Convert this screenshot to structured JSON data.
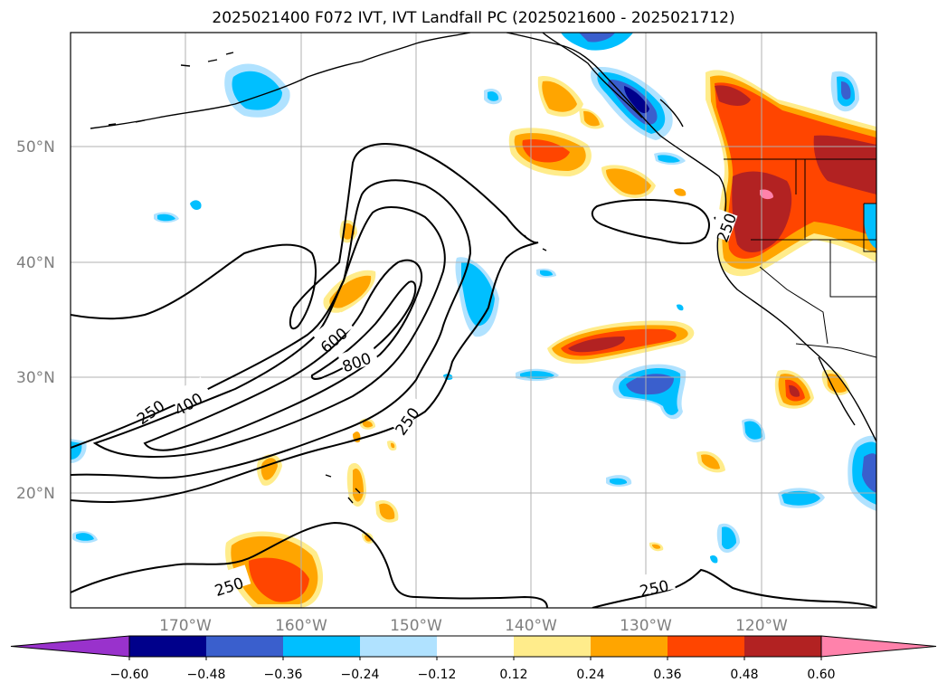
{
  "title": "2025021400 F072 IVT, IVT Landfall PC (2025021600 - 2025021712)",
  "lat_labels": [
    "50°N",
    "40°N",
    "30°N",
    "20°N"
  ],
  "lon_labels": [
    "170°W",
    "160°W",
    "150°W",
    "140°W",
    "130°W",
    "120°W"
  ],
  "colorbar": {
    "ticks": [
      "−0.60",
      "−0.48",
      "−0.36",
      "−0.24",
      "−0.12",
      "0.12",
      "0.24",
      "0.36",
      "0.48",
      "0.60"
    ],
    "colors": [
      "#9932cc",
      "#00008b",
      "#3a5fcd",
      "#00bfff",
      "#b0e2ff",
      "#ffffff",
      "#ffec8b",
      "#ffa500",
      "#ff4500",
      "#b22222",
      "#ff82ab"
    ]
  },
  "contour_labels": [
    "250",
    "400",
    "600",
    "800",
    "250",
    "250",
    "250",
    "250"
  ]
}
